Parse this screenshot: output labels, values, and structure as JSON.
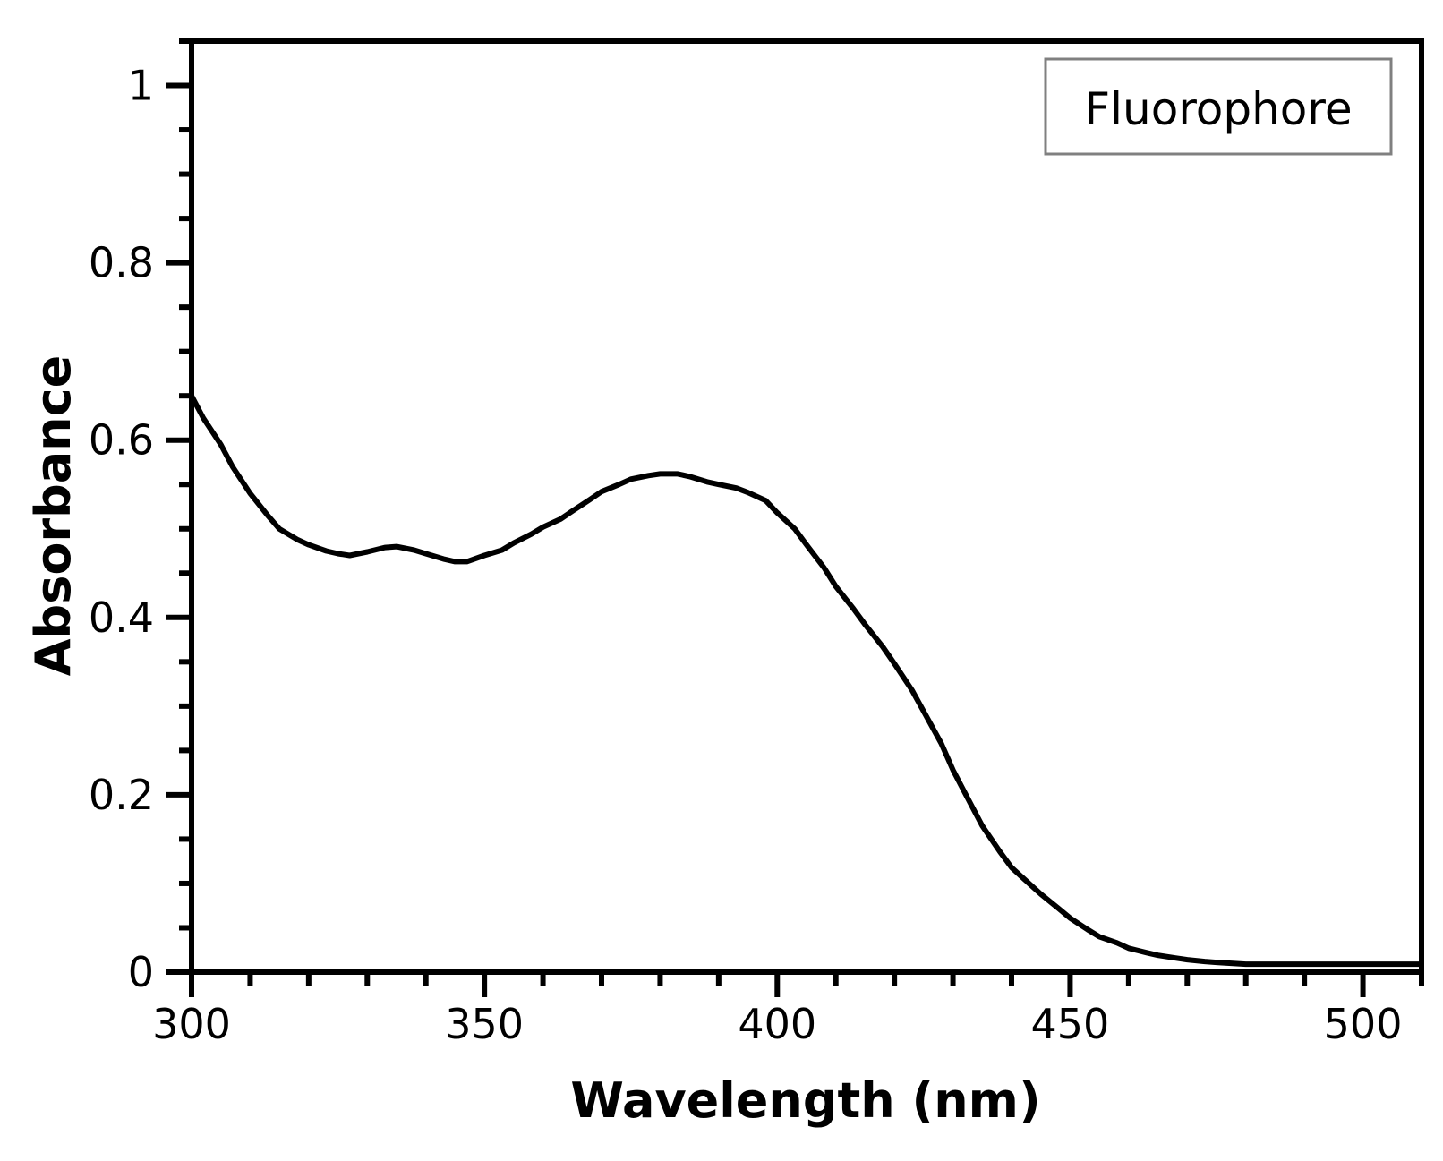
{
  "chart_data": {
    "type": "line",
    "title": "",
    "xlabel": "Wavelength (nm)",
    "ylabel": "Absorbance",
    "xlim": [
      300,
      510
    ],
    "ylim": [
      0,
      1.05
    ],
    "x_ticks": [
      300,
      350,
      400,
      450,
      500
    ],
    "x_tick_labels": [
      "300",
      "350",
      "400",
      "450",
      "500"
    ],
    "y_ticks": [
      0,
      0.2,
      0.4,
      0.6,
      0.8,
      1
    ],
    "y_tick_labels": [
      "0",
      "0.2",
      "0.4",
      "0.6",
      "0.8",
      "1"
    ],
    "grid": false,
    "legend": {
      "position": "top-right",
      "entries": [
        "Fluorophore"
      ]
    },
    "colors": {
      "line": "#000000",
      "frame": "#000000",
      "legend_border": "#808080"
    },
    "series": [
      {
        "name": "Fluorophore",
        "x": [
          300,
          302,
          305,
          307,
          310,
          313,
          315,
          318,
          320,
          323,
          325,
          327,
          330,
          333,
          335,
          338,
          340,
          343,
          345,
          347,
          350,
          353,
          355,
          358,
          360,
          363,
          365,
          368,
          370,
          373,
          375,
          378,
          380,
          383,
          385,
          388,
          390,
          393,
          395,
          398,
          400,
          403,
          405,
          408,
          410,
          413,
          415,
          418,
          420,
          423,
          425,
          428,
          430,
          433,
          435,
          438,
          440,
          443,
          445,
          448,
          450,
          453,
          455,
          458,
          460,
          463,
          465,
          468,
          470,
          473,
          475,
          480,
          485,
          490,
          495,
          500,
          505,
          510
        ],
        "y": [
          0.65,
          0.625,
          0.595,
          0.57,
          0.54,
          0.515,
          0.5,
          0.488,
          0.482,
          0.475,
          0.472,
          0.47,
          0.474,
          0.479,
          0.48,
          0.476,
          0.472,
          0.466,
          0.463,
          0.463,
          0.47,
          0.476,
          0.484,
          0.494,
          0.502,
          0.511,
          0.52,
          0.533,
          0.542,
          0.55,
          0.556,
          0.56,
          0.562,
          0.562,
          0.559,
          0.553,
          0.55,
          0.546,
          0.541,
          0.532,
          0.518,
          0.5,
          0.482,
          0.456,
          0.435,
          0.41,
          0.392,
          0.367,
          0.348,
          0.318,
          0.294,
          0.258,
          0.228,
          0.19,
          0.165,
          0.136,
          0.118,
          0.1,
          0.088,
          0.072,
          0.061,
          0.048,
          0.04,
          0.033,
          0.027,
          0.022,
          0.019,
          0.016,
          0.014,
          0.012,
          0.011,
          0.009,
          0.009,
          0.009,
          0.009,
          0.009,
          0.009,
          0.009
        ]
      }
    ]
  }
}
